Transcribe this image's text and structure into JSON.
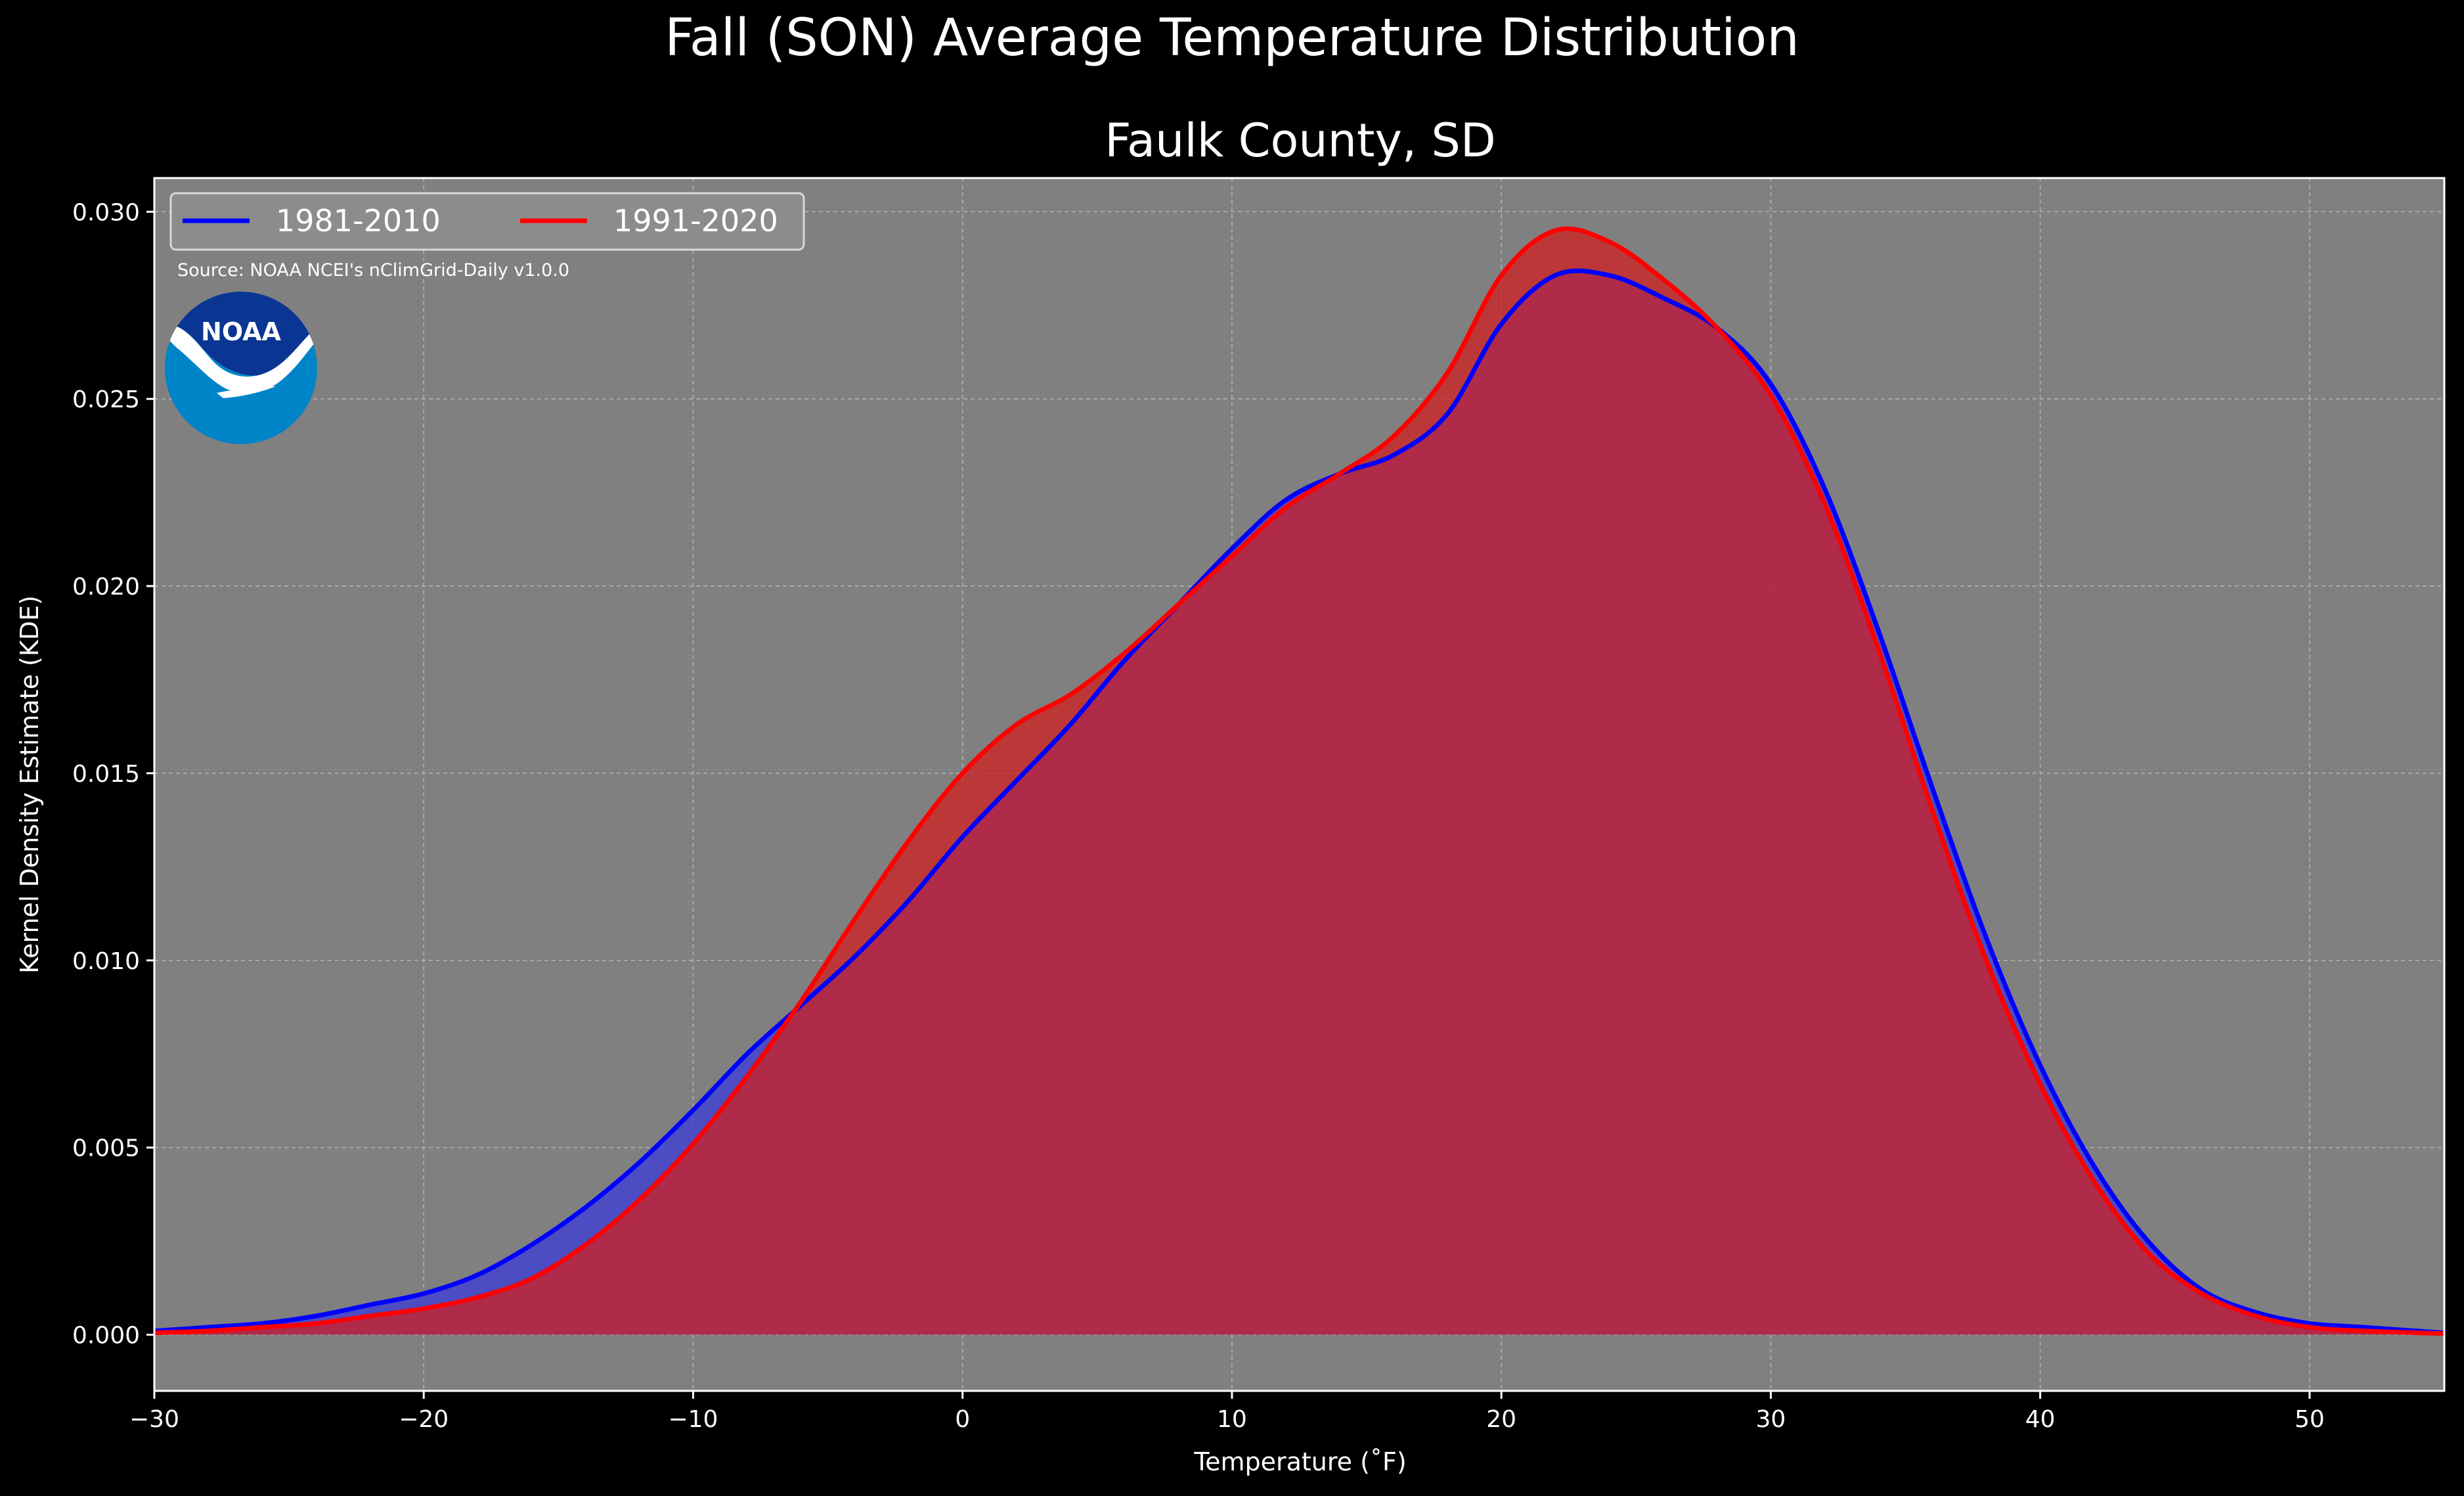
{
  "chart_data": {
    "type": "area",
    "title": "Fall (SON) Average Temperature Distribution",
    "subtitle": "Faulk County, SD",
    "xlabel": "Temperature (˚F)",
    "ylabel": "Kernel Density Estimate (KDE)",
    "xlim": [
      -30,
      55
    ],
    "ylim": [
      -0.0015,
      0.0309
    ],
    "xticks": [
      -30,
      -20,
      -10,
      0,
      10,
      20,
      30,
      40,
      50
    ],
    "xtick_labels": [
      "−30",
      "−20",
      "−10",
      "0",
      "10",
      "20",
      "30",
      "40",
      "50"
    ],
    "yticks": [
      0,
      0.005,
      0.01,
      0.015,
      0.02,
      0.025,
      0.03
    ],
    "ytick_labels": [
      "0.000",
      "0.005",
      "0.010",
      "0.015",
      "0.020",
      "0.025",
      "0.030"
    ],
    "grid": true,
    "legend_position": "top-left",
    "source_note": "Source: NOAA NCEI's nClimGrid-Daily v1.0.0",
    "logo_text": "NOAA",
    "series": [
      {
        "name": "1981-2010",
        "color": "#0000ff",
        "fill_color": "#3b3bd9",
        "points": [
          [
            -30,
            0.0001
          ],
          [
            -28,
            0.0002
          ],
          [
            -26,
            0.0003
          ],
          [
            -24,
            0.0005
          ],
          [
            -22,
            0.0008
          ],
          [
            -20,
            0.0011
          ],
          [
            -18,
            0.0016
          ],
          [
            -16,
            0.0024
          ],
          [
            -14,
            0.0034
          ],
          [
            -12,
            0.0046
          ],
          [
            -10,
            0.006
          ],
          [
            -8,
            0.0075
          ],
          [
            -6,
            0.0088
          ],
          [
            -4,
            0.0101
          ],
          [
            -2,
            0.0116
          ],
          [
            0,
            0.0133
          ],
          [
            2,
            0.0148
          ],
          [
            4,
            0.0163
          ],
          [
            6,
            0.018
          ],
          [
            8,
            0.0195
          ],
          [
            10,
            0.021
          ],
          [
            12,
            0.0223
          ],
          [
            14,
            0.023
          ],
          [
            16,
            0.0235
          ],
          [
            18,
            0.0246
          ],
          [
            20,
            0.027
          ],
          [
            22,
            0.0283
          ],
          [
            24,
            0.0283
          ],
          [
            26,
            0.0277
          ],
          [
            28,
            0.0269
          ],
          [
            30,
            0.0254
          ],
          [
            32,
            0.0226
          ],
          [
            34,
            0.0188
          ],
          [
            36,
            0.0146
          ],
          [
            38,
            0.0106
          ],
          [
            40,
            0.0072
          ],
          [
            42,
            0.0045
          ],
          [
            44,
            0.0025
          ],
          [
            46,
            0.0012
          ],
          [
            48,
            0.0006
          ],
          [
            50,
            0.0003
          ],
          [
            52,
            0.0002
          ],
          [
            55,
            5e-05
          ]
        ]
      },
      {
        "name": "1991-2020",
        "color": "#ff0000",
        "fill_color": "#d02020",
        "points": [
          [
            -30,
            5e-05
          ],
          [
            -28,
            0.0001
          ],
          [
            -26,
            0.0002
          ],
          [
            -24,
            0.0003
          ],
          [
            -22,
            0.0005
          ],
          [
            -20,
            0.0007
          ],
          [
            -18,
            0.001
          ],
          [
            -16,
            0.0015
          ],
          [
            -14,
            0.0024
          ],
          [
            -12,
            0.0036
          ],
          [
            -10,
            0.0051
          ],
          [
            -8,
            0.0069
          ],
          [
            -6,
            0.0089
          ],
          [
            -4,
            0.0111
          ],
          [
            -2,
            0.0132
          ],
          [
            0,
            0.015
          ],
          [
            2,
            0.0163
          ],
          [
            4,
            0.0171
          ],
          [
            6,
            0.0182
          ],
          [
            8,
            0.0195
          ],
          [
            10,
            0.0208
          ],
          [
            12,
            0.0221
          ],
          [
            14,
            0.023
          ],
          [
            16,
            0.024
          ],
          [
            18,
            0.0257
          ],
          [
            20,
            0.0283
          ],
          [
            22,
            0.0295
          ],
          [
            24,
            0.0292
          ],
          [
            26,
            0.0282
          ],
          [
            28,
            0.0269
          ],
          [
            30,
            0.0251
          ],
          [
            32,
            0.0222
          ],
          [
            34,
            0.0183
          ],
          [
            36,
            0.014
          ],
          [
            38,
            0.01
          ],
          [
            40,
            0.0067
          ],
          [
            42,
            0.0041
          ],
          [
            44,
            0.0022
          ],
          [
            46,
            0.0011
          ],
          [
            48,
            0.0005
          ],
          [
            50,
            0.0002
          ],
          [
            52,
            0.0001
          ],
          [
            55,
            3e-05
          ]
        ]
      }
    ]
  }
}
